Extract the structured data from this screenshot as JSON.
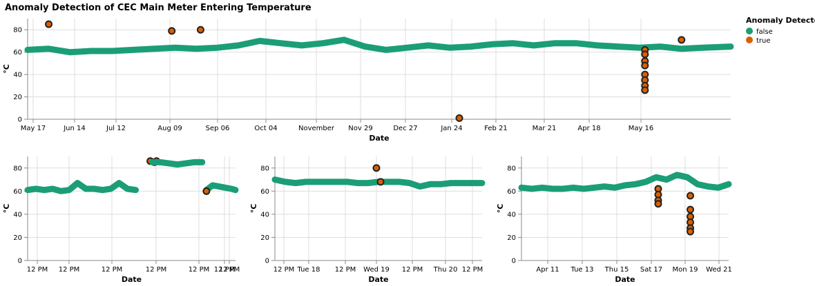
{
  "title": "Anomaly Detection of CEC Main Meter Entering Temperature",
  "legend": {
    "title": "Anomaly Detected",
    "items": [
      {
        "label": "false",
        "color": "#1b9e77"
      },
      {
        "label": "true",
        "color": "#d95f02"
      }
    ]
  },
  "chart_data": [
    {
      "type": "scatter",
      "panel": "overview",
      "xlabel": "Date",
      "ylabel": "°C",
      "ylim": [
        0,
        90
      ],
      "yticks": [
        0,
        20,
        40,
        60,
        80
      ],
      "grid": true,
      "x_tick_labels": [
        "May 17",
        "Jun 14",
        "Jul 12",
        "Aug 09",
        "Sep 06",
        "Oct 04",
        "November",
        "Nov 29",
        "Dec 27",
        "Jan 24",
        "Feb 21",
        "Mar 21",
        "Apr 18",
        "May 16"
      ],
      "series": [
        {
          "name": "false",
          "color": "#1b9e77",
          "x": [
            0.0,
            0.03,
            0.06,
            0.09,
            0.12,
            0.15,
            0.18,
            0.21,
            0.24,
            0.27,
            0.3,
            0.33,
            0.36,
            0.39,
            0.42,
            0.45,
            0.48,
            0.51,
            0.54,
            0.57,
            0.6,
            0.63,
            0.66,
            0.69,
            0.72,
            0.75,
            0.78,
            0.81,
            0.84,
            0.87,
            0.9,
            0.93,
            0.96,
            1.0
          ],
          "values": [
            62,
            63,
            60,
            61,
            61,
            62,
            63,
            64,
            63,
            64,
            66,
            70,
            68,
            66,
            68,
            71,
            65,
            62,
            64,
            66,
            64,
            65,
            67,
            68,
            66,
            68,
            68,
            66,
            65,
            64,
            65,
            63,
            64,
            65
          ]
        },
        {
          "name": "true",
          "color": "#d95f02",
          "x": [
            0.03,
            0.205,
            0.246,
            0.614,
            0.878,
            0.878,
            0.878,
            0.878,
            0.878,
            0.878,
            0.878,
            0.878,
            0.93
          ],
          "values": [
            85,
            79,
            80,
            1,
            62,
            58,
            52,
            48,
            40,
            35,
            30,
            26,
            71
          ]
        }
      ]
    },
    {
      "type": "scatter",
      "panel": "detail-1",
      "xlabel": "Date",
      "ylabel": "°C",
      "ylim": [
        0,
        90
      ],
      "yticks": [
        0,
        20,
        40,
        60,
        80
      ],
      "grid": true,
      "x_tick_labels": [
        "12 PM",
        "12 PM",
        "12 PM",
        "12 PM",
        "12 PM",
        "12 PM",
        "12 PM"
      ],
      "series": [
        {
          "name": "false",
          "color": "#1b9e77",
          "x": [
            0.0,
            0.04,
            0.08,
            0.12,
            0.16,
            0.2,
            0.24,
            0.28,
            0.32,
            0.36,
            0.4,
            0.44,
            0.48,
            0.52,
            0.56,
            0.6,
            0.64
          ],
          "values": [
            61,
            62,
            61,
            62,
            60,
            61,
            67,
            62,
            62,
            61,
            62,
            67,
            62,
            61,
            null,
            null,
            null
          ]
        },
        {
          "name": "false-b",
          "color": "#1b9e77",
          "x": [
            0.86,
            0.89,
            0.92,
            0.95,
            0.98,
            1.0
          ],
          "values": [
            61,
            65,
            64,
            63,
            62,
            61
          ]
        },
        {
          "name": "true",
          "color": "#d95f02",
          "x": [
            0.59,
            0.61,
            0.62,
            0.86
          ],
          "values": [
            86,
            85,
            86,
            60
          ]
        },
        {
          "name": "false-high",
          "color": "#1b9e77",
          "x": [
            0.6,
            0.64,
            0.68,
            0.72,
            0.76,
            0.8,
            0.84
          ],
          "values": [
            85,
            85,
            84,
            83,
            84,
            85,
            85
          ]
        }
      ]
    },
    {
      "type": "scatter",
      "panel": "detail-2",
      "xlabel": "Date",
      "ylabel": "°C",
      "ylim": [
        0,
        90
      ],
      "yticks": [
        0,
        20,
        40,
        60,
        80
      ],
      "grid": true,
      "x_tick_labels": [
        "12 PM",
        "Tue 18",
        "12 PM",
        "Wed 19",
        "12 PM",
        "Thu 20",
        "12 PM"
      ],
      "series": [
        {
          "name": "false",
          "color": "#1b9e77",
          "x": [
            0.0,
            0.05,
            0.1,
            0.15,
            0.2,
            0.25,
            0.3,
            0.35,
            0.4,
            0.45,
            0.5,
            0.55,
            0.6,
            0.65,
            0.7,
            0.75,
            0.8,
            0.85,
            0.9,
            0.95,
            1.0
          ],
          "values": [
            70,
            68,
            67,
            68,
            68,
            68,
            68,
            68,
            67,
            67,
            68,
            68,
            68,
            67,
            64,
            66,
            66,
            67,
            67,
            67,
            67
          ]
        },
        {
          "name": "true",
          "color": "#d95f02",
          "x": [
            0.49,
            0.51
          ],
          "values": [
            80,
            68
          ]
        }
      ]
    },
    {
      "type": "scatter",
      "panel": "detail-3",
      "xlabel": "Date",
      "ylabel": "°C",
      "ylim": [
        0,
        90
      ],
      "yticks": [
        0,
        20,
        40,
        60,
        80
      ],
      "grid": true,
      "x_tick_labels": [
        "Apr 11",
        "Tue 13",
        "Thu 15",
        "Sat 17",
        "Mon 19",
        "Wed 21"
      ],
      "series": [
        {
          "name": "false",
          "color": "#1b9e77",
          "x": [
            0.0,
            0.05,
            0.1,
            0.15,
            0.2,
            0.25,
            0.3,
            0.35,
            0.4,
            0.45,
            0.5,
            0.55,
            0.6,
            0.65,
            0.7,
            0.75,
            0.8,
            0.85,
            0.9,
            0.95,
            1.0
          ],
          "values": [
            63,
            62,
            63,
            62,
            62,
            63,
            62,
            63,
            64,
            63,
            65,
            66,
            68,
            72,
            70,
            74,
            72,
            66,
            64,
            63,
            66
          ]
        },
        {
          "name": "true",
          "color": "#d95f02",
          "x": [
            0.66,
            0.66,
            0.66,
            0.66,
            0.815,
            0.815,
            0.815,
            0.815,
            0.815,
            0.815
          ],
          "values": [
            62,
            57,
            52,
            49,
            56,
            44,
            38,
            33,
            28,
            25
          ]
        }
      ]
    }
  ]
}
